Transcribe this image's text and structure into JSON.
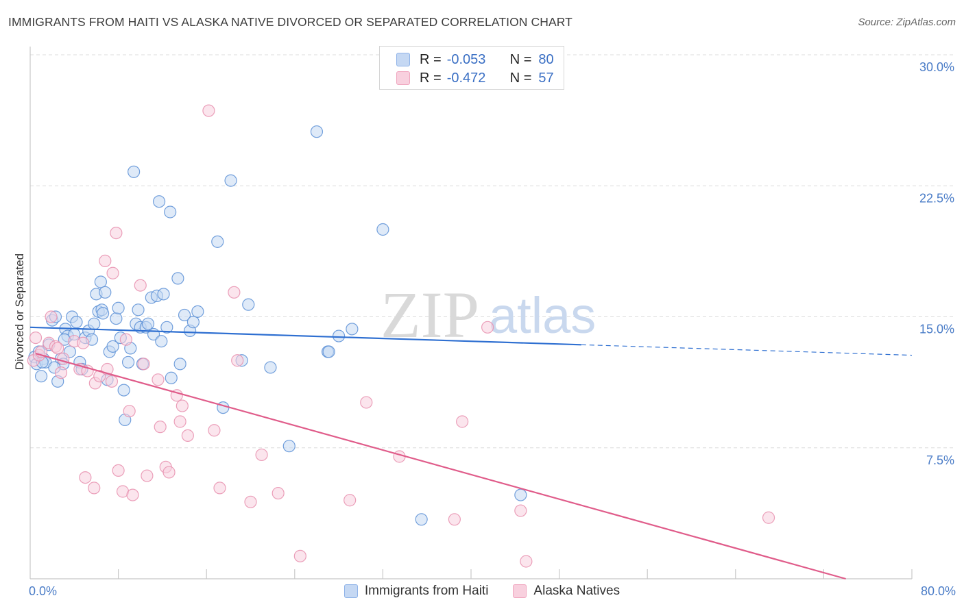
{
  "title": "IMMIGRANTS FROM HAITI VS ALASKA NATIVE DIVORCED OR SEPARATED CORRELATION CHART",
  "source": "Source: ZipAtlas.com",
  "watermark": {
    "zip": "ZIP",
    "atlas": "atlas"
  },
  "legend": {
    "rows": [
      {
        "r_label": "R =",
        "r_value": "-0.053",
        "n_label": "N =",
        "n_value": "80",
        "color": "#8fb3e8",
        "fill": "#c5d8f3"
      },
      {
        "r_label": "R =",
        "r_value": "-0.472",
        "n_label": "N =",
        "n_value": "57",
        "color": "#f0a6bf",
        "fill": "#f8d0de"
      }
    ]
  },
  "bottom_legend": [
    {
      "label": "Immigrants from Haiti",
      "color": "#8fb3e8",
      "fill": "#c5d8f3"
    },
    {
      "label": "Alaska Natives",
      "color": "#f0a6bf",
      "fill": "#f8d0de"
    }
  ],
  "chart_data": {
    "type": "scatter",
    "title": "IMMIGRANTS FROM HAITI VS ALASKA NATIVE DIVORCED OR SEPARATED CORRELATION CHART",
    "xlabel": "",
    "ylabel": "Divorced or Separated",
    "xlim": [
      0,
      80
    ],
    "ylim": [
      0,
      30
    ],
    "x_tick_labels": [
      "0.0%",
      "80.0%"
    ],
    "y_ticks": [
      7.5,
      15.0,
      22.5,
      30.0
    ],
    "y_tick_labels": [
      "7.5%",
      "15.0%",
      "22.5%",
      "30.0%"
    ],
    "grid": "horizontal dashed",
    "legend_position": "top-center",
    "series": [
      {
        "name": "Immigrants from Haiti",
        "color": "#5b8fd6",
        "fill": "#c5d8f3",
        "trend": {
          "x": [
            0,
            50
          ],
          "y": [
            14.4,
            13.4
          ],
          "dashed_extension": {
            "x": [
              50,
              80
            ],
            "y": [
              13.4,
              12.8
            ]
          },
          "color": "#2e6fd1"
        },
        "points": [
          [
            0.4,
            12.7
          ],
          [
            0.6,
            12.3
          ],
          [
            0.8,
            13.0
          ],
          [
            1.0,
            11.6
          ],
          [
            1.2,
            12.6
          ],
          [
            1.4,
            12.4
          ],
          [
            1.7,
            13.4
          ],
          [
            2.0,
            14.8
          ],
          [
            2.3,
            15.0
          ],
          [
            2.5,
            11.3
          ],
          [
            2.8,
            12.6
          ],
          [
            3.0,
            12.3
          ],
          [
            3.2,
            14.3
          ],
          [
            3.4,
            13.9
          ],
          [
            3.6,
            13.0
          ],
          [
            3.8,
            15.0
          ],
          [
            4.0,
            14.0
          ],
          [
            4.2,
            14.7
          ],
          [
            4.5,
            12.4
          ],
          [
            4.7,
            12.0
          ],
          [
            5.0,
            13.8
          ],
          [
            5.3,
            14.2
          ],
          [
            5.6,
            13.7
          ],
          [
            5.8,
            14.6
          ],
          [
            6.0,
            16.3
          ],
          [
            6.2,
            15.3
          ],
          [
            6.4,
            17.0
          ],
          [
            6.5,
            15.4
          ],
          [
            6.8,
            16.4
          ],
          [
            7.0,
            11.4
          ],
          [
            7.2,
            13.0
          ],
          [
            7.5,
            13.3
          ],
          [
            7.8,
            14.9
          ],
          [
            8.0,
            15.5
          ],
          [
            8.2,
            13.8
          ],
          [
            8.5,
            10.8
          ],
          [
            8.6,
            9.1
          ],
          [
            8.9,
            12.4
          ],
          [
            9.1,
            13.2
          ],
          [
            9.4,
            23.3
          ],
          [
            9.6,
            14.6
          ],
          [
            9.8,
            15.4
          ],
          [
            10.0,
            14.4
          ],
          [
            10.2,
            12.3
          ],
          [
            10.5,
            14.4
          ],
          [
            10.7,
            14.6
          ],
          [
            11.0,
            16.1
          ],
          [
            11.2,
            14.0
          ],
          [
            11.5,
            16.2
          ],
          [
            11.7,
            21.6
          ],
          [
            11.9,
            13.6
          ],
          [
            12.1,
            16.3
          ],
          [
            12.4,
            14.4
          ],
          [
            12.7,
            21.0
          ],
          [
            12.8,
            11.5
          ],
          [
            13.4,
            17.2
          ],
          [
            13.6,
            12.3
          ],
          [
            14.0,
            15.1
          ],
          [
            14.5,
            14.2
          ],
          [
            14.8,
            14.7
          ],
          [
            15.2,
            15.3
          ],
          [
            17.0,
            19.3
          ],
          [
            17.5,
            9.8
          ],
          [
            18.2,
            22.8
          ],
          [
            19.2,
            12.5
          ],
          [
            19.8,
            15.7
          ],
          [
            21.8,
            12.1
          ],
          [
            23.5,
            7.6
          ],
          [
            26.0,
            25.6
          ],
          [
            27.0,
            13.0
          ],
          [
            27.1,
            13.0
          ],
          [
            28.0,
            13.9
          ],
          [
            29.2,
            14.3
          ],
          [
            32.0,
            20.0
          ],
          [
            35.5,
            3.4
          ],
          [
            44.5,
            4.8
          ],
          [
            1.1,
            12.4
          ],
          [
            2.2,
            12.1
          ],
          [
            3.1,
            13.7
          ],
          [
            6.6,
            15.2
          ]
        ]
      },
      {
        "name": "Alaska Natives",
        "color": "#e88fae",
        "fill": "#f8d0de",
        "trend": {
          "x": [
            0.5,
            74
          ],
          "y": [
            12.9,
            0.0
          ],
          "color": "#e05c8a"
        },
        "points": [
          [
            0.3,
            12.5
          ],
          [
            0.5,
            13.8
          ],
          [
            0.8,
            12.8
          ],
          [
            1.0,
            13.0
          ],
          [
            1.7,
            13.5
          ],
          [
            1.9,
            15.0
          ],
          [
            2.3,
            13.3
          ],
          [
            2.8,
            11.8
          ],
          [
            3.0,
            12.6
          ],
          [
            4.0,
            13.6
          ],
          [
            4.5,
            12.0
          ],
          [
            4.8,
            13.5
          ],
          [
            5.0,
            5.8
          ],
          [
            5.2,
            11.9
          ],
          [
            5.8,
            5.2
          ],
          [
            5.9,
            11.2
          ],
          [
            6.3,
            11.6
          ],
          [
            6.8,
            18.2
          ],
          [
            7.0,
            12.0
          ],
          [
            7.5,
            17.5
          ],
          [
            7.8,
            19.8
          ],
          [
            8.0,
            6.2
          ],
          [
            8.4,
            5.0
          ],
          [
            8.7,
            13.7
          ],
          [
            9.0,
            9.6
          ],
          [
            9.3,
            4.8
          ],
          [
            10.0,
            16.8
          ],
          [
            10.3,
            12.3
          ],
          [
            10.6,
            5.9
          ],
          [
            11.6,
            11.4
          ],
          [
            11.8,
            8.7
          ],
          [
            12.3,
            6.4
          ],
          [
            12.6,
            6.1
          ],
          [
            13.3,
            10.5
          ],
          [
            13.6,
            9.0
          ],
          [
            13.8,
            9.9
          ],
          [
            14.3,
            8.2
          ],
          [
            16.2,
            26.8
          ],
          [
            16.7,
            8.5
          ],
          [
            17.2,
            5.2
          ],
          [
            18.5,
            16.4
          ],
          [
            18.8,
            12.5
          ],
          [
            20.0,
            4.4
          ],
          [
            21.0,
            7.1
          ],
          [
            22.5,
            4.9
          ],
          [
            24.5,
            1.3
          ],
          [
            29.0,
            4.5
          ],
          [
            30.5,
            10.1
          ],
          [
            33.5,
            7.0
          ],
          [
            38.5,
            3.4
          ],
          [
            39.2,
            9.0
          ],
          [
            41.5,
            14.4
          ],
          [
            44.5,
            3.9
          ],
          [
            45.0,
            1.0
          ],
          [
            67.0,
            3.5
          ],
          [
            2.5,
            13.2
          ],
          [
            7.4,
            11.3
          ]
        ]
      }
    ]
  }
}
